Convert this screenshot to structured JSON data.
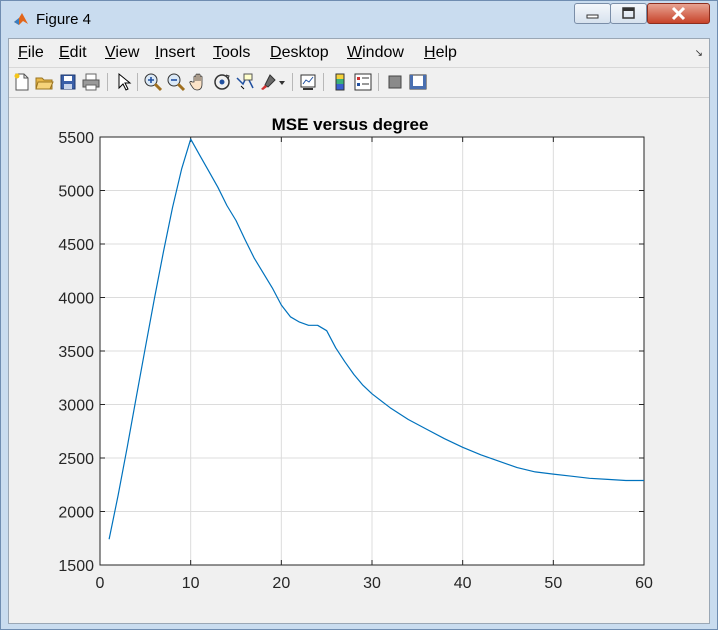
{
  "window": {
    "title": "Figure 4"
  },
  "menu": [
    {
      "label_u": "F",
      "label_rest": "ile"
    },
    {
      "label_u": "E",
      "label_rest": "dit"
    },
    {
      "label_u": "V",
      "label_rest": "iew"
    },
    {
      "label_u": "I",
      "label_rest": "nsert"
    },
    {
      "label_u": "T",
      "label_rest": "ools"
    },
    {
      "label_u": "D",
      "label_rest": "esktop"
    },
    {
      "label_u": "W",
      "label_rest": "indow"
    },
    {
      "label_u": "H",
      "label_rest": "elp"
    }
  ],
  "toolbar": {
    "icons": [
      "new-figure-icon",
      "open-file-icon",
      "save-icon",
      "print-icon",
      "pointer-icon",
      "zoom-in-icon",
      "zoom-out-icon",
      "pan-hand-icon",
      "rotate-3d-icon",
      "data-cursor-icon",
      "brush-icon",
      "brush-dropdown-icon",
      "link-plot-icon",
      "colorbar-icon",
      "legend-icon",
      "hide-plot-tools-icon",
      "show-plot-tools-icon"
    ]
  },
  "chart_data": {
    "type": "line",
    "title": "MSE versus degree",
    "xlabel": "",
    "ylabel": "",
    "xlim": [
      0,
      60
    ],
    "ylim": [
      1500,
      5500
    ],
    "xticks": [
      0,
      10,
      20,
      30,
      40,
      50,
      60
    ],
    "yticks": [
      1500,
      2000,
      2500,
      3000,
      3500,
      4000,
      4500,
      5000,
      5500
    ],
    "grid": true,
    "color": "#0072bd",
    "series": [
      {
        "x": [
          1,
          2,
          3,
          4,
          5,
          6,
          7,
          8,
          9,
          10,
          11,
          12,
          13,
          14,
          15,
          16,
          17,
          18,
          19,
          20,
          21,
          22,
          23,
          24,
          25,
          26,
          27,
          28,
          29,
          30,
          32,
          34,
          36,
          38,
          40,
          42,
          44,
          46,
          48,
          50,
          52,
          54,
          56,
          58,
          60
        ],
        "values": [
          1740,
          2150,
          2600,
          3070,
          3530,
          3990,
          4430,
          4840,
          5200,
          5480,
          5330,
          5180,
          5030,
          4860,
          4720,
          4540,
          4370,
          4230,
          4090,
          3930,
          3820,
          3770,
          3740,
          3740,
          3690,
          3530,
          3400,
          3280,
          3180,
          3100,
          2970,
          2860,
          2770,
          2680,
          2600,
          2530,
          2470,
          2410,
          2370,
          2350,
          2330,
          2310,
          2300,
          2290,
          2290
        ]
      }
    ]
  }
}
